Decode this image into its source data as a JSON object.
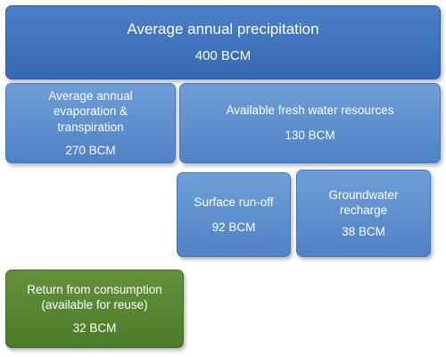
{
  "diagram": {
    "precipitation": {
      "label": "Average annual precipitation",
      "value": "400 BCM"
    },
    "evaporation": {
      "label": "Average annual\nevaporation &\ntranspiration",
      "value": "270 BCM"
    },
    "fresh_water": {
      "label": "Available fresh water resources",
      "value": "130 BCM"
    },
    "surface_runoff": {
      "label": "Surface run-off",
      "value": "92 BCM"
    },
    "groundwater": {
      "label": "Groundwater\nrecharge",
      "value": "38 BCM"
    },
    "return_flow": {
      "label": "Return from consumption\n(available for reuse)",
      "value": "32 BCM"
    }
  },
  "colors": {
    "blue_dark": "#3769b2",
    "blue_mid": "#5b8fd0",
    "green": "#55832f",
    "text": "#ffffff"
  }
}
